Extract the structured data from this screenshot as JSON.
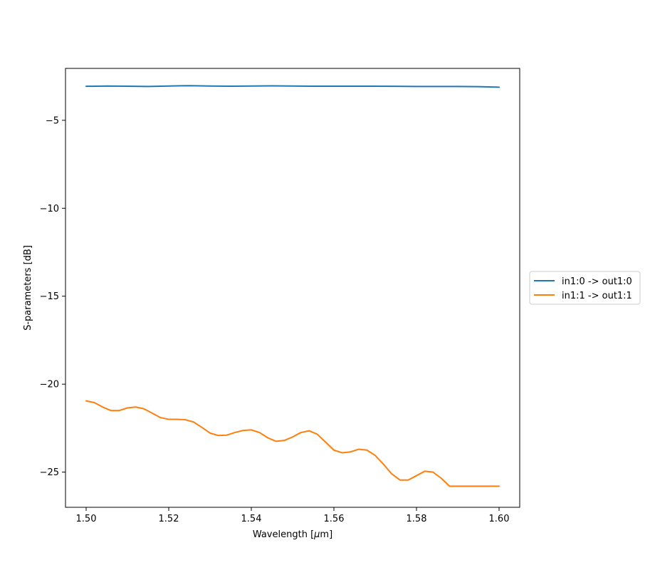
{
  "chart_data": {
    "type": "line",
    "title": "",
    "xlabel": "Wavelength [",
    "xlabel_symbol": "μ",
    "xlabel_unit_suffix": "m]",
    "ylabel": "S-parameters [dB]",
    "xlim": [
      1.495,
      1.605
    ],
    "ylim": [
      -27.0,
      -2.05
    ],
    "xticks": [
      1.5,
      1.52,
      1.54,
      1.56,
      1.58,
      1.6
    ],
    "xtick_labels": [
      "1.50",
      "1.52",
      "1.54",
      "1.56",
      "1.58",
      "1.60"
    ],
    "yticks": [
      -5,
      -10,
      -15,
      -20,
      -25
    ],
    "ytick_labels": [
      "−5",
      "−10",
      "−15",
      "−20",
      "−25"
    ],
    "grid": false,
    "legend_position": "right-outside",
    "series": [
      {
        "name": "in1:0 -> out1:0",
        "color": "#1f77b4",
        "x": [
          1.5,
          1.505,
          1.51,
          1.515,
          1.52,
          1.525,
          1.53,
          1.535,
          1.54,
          1.545,
          1.55,
          1.555,
          1.56,
          1.565,
          1.57,
          1.575,
          1.58,
          1.585,
          1.59,
          1.595,
          1.6
        ],
        "y": [
          -3.07,
          -3.05,
          -3.06,
          -3.08,
          -3.05,
          -3.03,
          -3.05,
          -3.06,
          -3.05,
          -3.04,
          -3.05,
          -3.06,
          -3.06,
          -3.06,
          -3.06,
          -3.07,
          -3.08,
          -3.08,
          -3.08,
          -3.09,
          -3.12
        ]
      },
      {
        "name": "in1:1 -> out1:1",
        "color": "#ff7f0e",
        "x": [
          1.5,
          1.502,
          1.504,
          1.506,
          1.508,
          1.51,
          1.512,
          1.514,
          1.516,
          1.518,
          1.52,
          1.522,
          1.524,
          1.526,
          1.528,
          1.53,
          1.532,
          1.534,
          1.536,
          1.538,
          1.54,
          1.542,
          1.544,
          1.546,
          1.548,
          1.55,
          1.552,
          1.554,
          1.556,
          1.558,
          1.56,
          1.562,
          1.564,
          1.566,
          1.568,
          1.57,
          1.572,
          1.574,
          1.576,
          1.578,
          1.58,
          1.582,
          1.584,
          1.586,
          1.588,
          1.59,
          1.592,
          1.594,
          1.596,
          1.598,
          1.6
        ],
        "y": [
          -20.95,
          -21.05,
          -21.3,
          -21.5,
          -21.5,
          -21.35,
          -21.3,
          -21.4,
          -21.65,
          -21.9,
          -22.0,
          -22.0,
          -22.02,
          -22.15,
          -22.45,
          -22.78,
          -22.92,
          -22.9,
          -22.75,
          -22.63,
          -22.6,
          -22.75,
          -23.05,
          -23.25,
          -23.2,
          -23.0,
          -22.75,
          -22.65,
          -22.85,
          -23.3,
          -23.75,
          -23.9,
          -23.85,
          -23.7,
          -23.75,
          -24.05,
          -24.55,
          -25.1,
          -25.45,
          -25.45,
          -25.2,
          -24.95,
          -25.0,
          -25.35,
          -25.8,
          -25.8,
          -25.8,
          -25.8,
          -25.8,
          -25.8,
          -25.8
        ]
      }
    ]
  }
}
